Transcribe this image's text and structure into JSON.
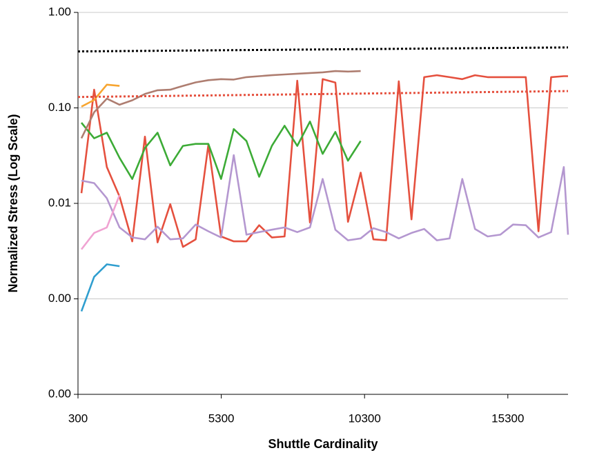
{
  "chart_data": {
    "type": "line",
    "x_label": "Shuttle Cardinality",
    "y_label": "Normalized Stress (Log Scale)",
    "log_y": true,
    "grid": true,
    "xlim": [
      300,
      17400
    ],
    "xticks": [
      300,
      5300,
      10300,
      15300
    ],
    "ylim": [
      0.0001,
      1
    ],
    "yticks": [
      {
        "value": 0.0001,
        "label": "0.00"
      },
      {
        "value": 0.001,
        "label": "0.00"
      },
      {
        "value": 0.01,
        "label": "0.01"
      },
      {
        "value": 0.1,
        "label": "0.10"
      },
      {
        "value": 1,
        "label": "1.00"
      }
    ],
    "x": [
      420,
      863,
      1306,
      1749,
      2192,
      2635,
      3078,
      3521,
      3964,
      4407,
      4850,
      5293,
      5736,
      6179,
      6622,
      7065,
      7508,
      7951,
      8394,
      8837,
      9280,
      9723,
      10166,
      10609,
      11052,
      11495,
      11938,
      12381,
      12824,
      13267,
      13710,
      14153,
      14596,
      15039,
      15482,
      15925,
      16368,
      16811,
      17254,
      17400
    ],
    "series": [
      {
        "color": "#e5503e",
        "values": [
          0.0128,
          0.155,
          0.024,
          0.0118,
          0.004,
          0.05,
          0.0039,
          0.0098,
          0.0035,
          0.0042,
          0.041,
          0.0045,
          0.004,
          0.004,
          0.0059,
          0.0044,
          0.0045,
          0.193,
          0.0063,
          0.2,
          0.184,
          0.0064,
          0.021,
          0.0042,
          0.0041,
          0.19,
          0.0068,
          0.21,
          0.22,
          0.21,
          0.2,
          0.22,
          0.21,
          0.21,
          0.21,
          0.21,
          0.0051,
          0.21,
          0.215,
          0.215
        ]
      },
      {
        "color": "#3cab36",
        "values": [
          0.07,
          0.048,
          0.055,
          0.03,
          0.018,
          0.038,
          0.055,
          0.025,
          0.04,
          0.042,
          0.042,
          0.018,
          0.06,
          0.045,
          0.019,
          0.04,
          0.065,
          0.04,
          0.072,
          0.033,
          0.056,
          0.028,
          0.045,
          null,
          null,
          null,
          null,
          null,
          null,
          null,
          null,
          null,
          null,
          null,
          null,
          null,
          null,
          null,
          null,
          null
        ]
      },
      {
        "color": "#ae7d70",
        "values": [
          0.048,
          0.09,
          0.125,
          0.108,
          0.12,
          0.14,
          0.153,
          0.155,
          0.17,
          0.185,
          0.195,
          0.2,
          0.198,
          0.21,
          0.215,
          0.22,
          0.224,
          0.228,
          0.232,
          0.236,
          0.243,
          0.24,
          0.243,
          null,
          null,
          null,
          null,
          null,
          null,
          null,
          null,
          null,
          null,
          null,
          null,
          null,
          null,
          null,
          null,
          null
        ]
      },
      {
        "color": "#b497d0",
        "values": [
          0.0173,
          0.0163,
          0.0113,
          0.0056,
          0.0044,
          0.0042,
          0.0057,
          0.0042,
          0.0043,
          0.006,
          0.0051,
          0.0044,
          0.032,
          0.0047,
          0.005,
          0.0053,
          0.0056,
          0.005,
          0.0056,
          0.018,
          0.0053,
          0.0041,
          0.0043,
          0.0055,
          0.005,
          0.0043,
          0.0049,
          0.0054,
          0.0041,
          0.0043,
          0.018,
          0.0054,
          0.0045,
          0.0047,
          0.006,
          0.0059,
          0.0044,
          0.005,
          0.024,
          0.0047
        ]
      },
      {
        "color": "#2f9ecf",
        "values": [
          0.00074,
          0.0017,
          0.0023,
          0.0022,
          null,
          null,
          null,
          null,
          null,
          null,
          null,
          null,
          null,
          null,
          null,
          null,
          null,
          null,
          null,
          null,
          null,
          null,
          null,
          null,
          null,
          null,
          null,
          null,
          null,
          null,
          null,
          null,
          null,
          null,
          null,
          null,
          null,
          null,
          null,
          null
        ]
      },
      {
        "color": "#f0a3d2",
        "values": [
          0.0033,
          0.0049,
          0.0056,
          0.0122,
          null,
          null,
          null,
          null,
          null,
          null,
          null,
          null,
          null,
          null,
          null,
          null,
          null,
          null,
          null,
          null,
          null,
          null,
          null,
          null,
          null,
          null,
          null,
          null,
          null,
          null,
          null,
          null,
          null,
          null,
          null,
          null,
          null,
          null,
          null,
          null
        ]
      },
      {
        "color": "#f7a530",
        "values": [
          0.103,
          0.121,
          0.175,
          0.17,
          null,
          null,
          null,
          null,
          null,
          null,
          null,
          null,
          null,
          null,
          null,
          null,
          null,
          null,
          null,
          null,
          null,
          null,
          null,
          null,
          null,
          null,
          null,
          null,
          null,
          null,
          null,
          null,
          null,
          null,
          null,
          null,
          null,
          null,
          null,
          null
        ]
      },
      {
        "color": "#000000",
        "dotted": true,
        "x": [
          300,
          17400
        ],
        "values": [
          0.39,
          0.43
        ]
      },
      {
        "color": "#e5503e",
        "dotted": true,
        "x": [
          300,
          17400
        ],
        "values": [
          0.13,
          0.15
        ]
      }
    ]
  }
}
